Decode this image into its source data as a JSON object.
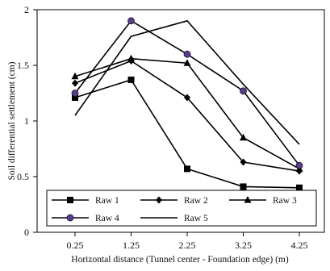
{
  "chart_data": {
    "type": "line",
    "title": "",
    "xlabel": "Horizontal distance (Tunnel center - Foundation edge) (m)",
    "ylabel": "Soil differential settlement (cm)",
    "x": [
      0.25,
      1.25,
      2.25,
      3.25,
      4.25
    ],
    "x_tick_labels": [
      "0.25",
      "1.25",
      "2.25",
      "3.25",
      "4.25"
    ],
    "ylim": [
      0,
      2
    ],
    "y_ticks": [
      0,
      0.5,
      1,
      1.5,
      2
    ],
    "y_tick_labels": [
      "0",
      "0.5",
      "1",
      "1.5",
      "2"
    ],
    "grid": false,
    "legend_position": "bottom",
    "series": [
      {
        "name": "Raw 1",
        "marker": "square",
        "values": [
          1.21,
          1.37,
          0.57,
          0.41,
          0.4
        ]
      },
      {
        "name": "Raw 2",
        "marker": "diamond",
        "values": [
          1.34,
          1.54,
          1.21,
          0.63,
          0.55
        ]
      },
      {
        "name": "Raw 3",
        "marker": "triangle",
        "values": [
          1.4,
          1.56,
          1.52,
          0.85,
          0.57
        ]
      },
      {
        "name": "Raw 4",
        "marker": "circle",
        "values": [
          1.25,
          1.9,
          1.6,
          1.27,
          0.6
        ]
      },
      {
        "name": "Raw 5",
        "marker": "none",
        "values": [
          1.05,
          1.76,
          1.9,
          1.33,
          0.79
        ]
      }
    ],
    "colors": {
      "line": "#000000",
      "circle_marker_fill": "#5a3d8a",
      "background": "#ffffff"
    }
  }
}
